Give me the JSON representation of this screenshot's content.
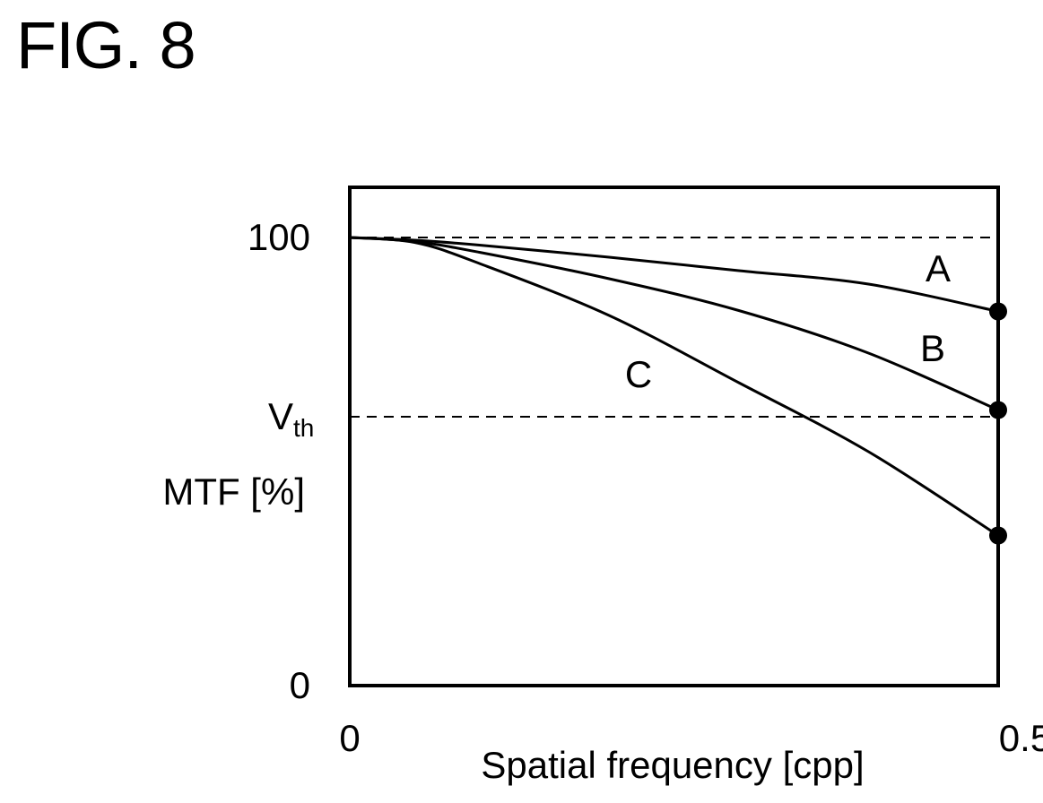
{
  "figure_label": "FIG. 8",
  "chart_data": {
    "type": "line",
    "xlabel": "Spatial frequency [cpp]",
    "ylabel": "MTF [%]",
    "xlim": [
      0,
      0.5
    ],
    "ylim": [
      0,
      100
    ],
    "x_ticks": [
      {
        "value": 0,
        "label": "0"
      },
      {
        "value": 0.5,
        "label": "0.5"
      }
    ],
    "y_ticks": [
      {
        "value": 0,
        "label": "0"
      },
      {
        "value": 100,
        "label": "100"
      }
    ],
    "reference_lines": [
      {
        "name": "100",
        "y": 100,
        "style": "dashed"
      },
      {
        "name": "Vth",
        "label_main": "V",
        "label_sub": "th",
        "y": 60,
        "style": "dashed"
      }
    ],
    "series": [
      {
        "name": "A",
        "x": [
          0,
          0.05,
          0.1,
          0.2,
          0.3,
          0.4,
          0.5
        ],
        "y": [
          100,
          99.4,
          98.3,
          95.6,
          92.6,
          89.6,
          83.5
        ],
        "end_marker": true
      },
      {
        "name": "B",
        "x": [
          0,
          0.05,
          0.1,
          0.2,
          0.3,
          0.4,
          0.5
        ],
        "y": [
          100,
          99.1,
          96.7,
          90.8,
          83.7,
          74.2,
          61.5
        ],
        "end_marker": true
      },
      {
        "name": "C",
        "x": [
          0,
          0.05,
          0.1,
          0.2,
          0.3,
          0.4,
          0.5
        ],
        "y": [
          100,
          98.9,
          94.2,
          82.6,
          67.6,
          52.2,
          33.5
        ],
        "end_marker": true
      }
    ]
  }
}
